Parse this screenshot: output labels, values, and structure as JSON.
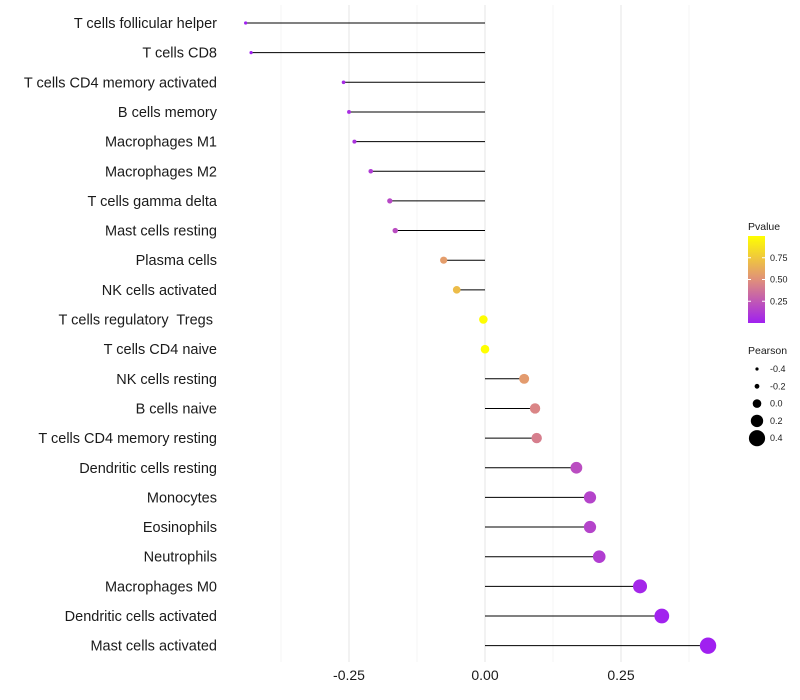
{
  "chart_data": {
    "type": "lollipop",
    "title": "",
    "xlabel": "",
    "ylabel": "",
    "xlim": [
      -0.5,
      0.43
    ],
    "xticks": [
      -0.25,
      0.0,
      0.25
    ],
    "xtick_labels": [
      "-0.25",
      "0.00",
      "0.25"
    ],
    "grid": true,
    "categories": [
      {
        "name": "T cells follicular helper",
        "value": -0.44,
        "pvalue": 0.0
      },
      {
        "name": "T cells CD8",
        "value": -0.43,
        "pvalue": 0.0
      },
      {
        "name": "T cells CD4 memory activated",
        "value": -0.26,
        "pvalue": 0.05
      },
      {
        "name": "B cells memory",
        "value": -0.25,
        "pvalue": 0.06
      },
      {
        "name": "Macrophages M1",
        "value": -0.24,
        "pvalue": 0.08
      },
      {
        "name": "Macrophages M2",
        "value": -0.21,
        "pvalue": 0.12
      },
      {
        "name": "T cells gamma delta",
        "value": -0.175,
        "pvalue": 0.18
      },
      {
        "name": "Mast cells resting",
        "value": -0.165,
        "pvalue": 0.2
      },
      {
        "name": "Plasma cells",
        "value": -0.076,
        "pvalue": 0.56
      },
      {
        "name": "NK cells activated",
        "value": -0.052,
        "pvalue": 0.7
      },
      {
        "name": "T cells regulatory  Tregs ",
        "value": -0.003,
        "pvalue": 0.99
      },
      {
        "name": "T cells CD4 naive",
        "value": 0.0,
        "pvalue": 1.0
      },
      {
        "name": "NK cells resting",
        "value": 0.072,
        "pvalue": 0.55
      },
      {
        "name": "B cells naive",
        "value": 0.092,
        "pvalue": 0.45
      },
      {
        "name": "T cells CD4 memory resting",
        "value": 0.095,
        "pvalue": 0.42
      },
      {
        "name": "Dendritic cells resting",
        "value": 0.168,
        "pvalue": 0.2
      },
      {
        "name": "Monocytes",
        "value": 0.193,
        "pvalue": 0.16
      },
      {
        "name": "Eosinophils",
        "value": 0.193,
        "pvalue": 0.16
      },
      {
        "name": "Neutrophils",
        "value": 0.21,
        "pvalue": 0.13
      },
      {
        "name": "Macrophages M0",
        "value": 0.285,
        "pvalue": 0.03
      },
      {
        "name": "Dendritic cells activated",
        "value": 0.325,
        "pvalue": 0.01
      },
      {
        "name": "Mast cells activated",
        "value": 0.41,
        "pvalue": 0.0
      }
    ],
    "legend_color": {
      "title": "Pvalue",
      "ticks": [
        0.25,
        0.5,
        0.75
      ],
      "tick_labels": [
        "0.25",
        "0.50",
        "0.75"
      ],
      "range": [
        0,
        1
      ],
      "low_color": "#a020f0",
      "mid_color": "#e0907a",
      "high_color": "#ffff00",
      "placement": "right"
    },
    "legend_size": {
      "title": "Pearson",
      "values": [
        -0.4,
        -0.2,
        0.0,
        0.2,
        0.4
      ],
      "labels": [
        "-0.4",
        "-0.2",
        "0.0",
        "0.2",
        "0.4"
      ],
      "placement": "right"
    },
    "colors": {
      "stem": "#000000",
      "grid": "#ebebeb"
    }
  }
}
